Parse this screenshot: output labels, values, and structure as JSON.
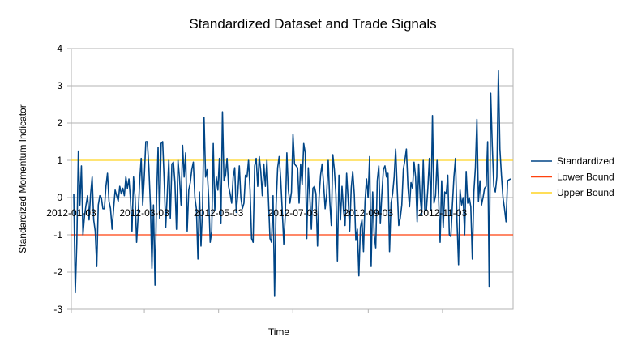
{
  "chart_data": {
    "type": "line",
    "title": "Standardized Dataset and Trade Signals",
    "xlabel": "Time",
    "ylabel": "Standardized Momentum Indicator",
    "ylim": [
      -3,
      4
    ],
    "yticks": [
      -3,
      -2,
      -1,
      0,
      1,
      2,
      3,
      4
    ],
    "grid": "horizontal",
    "legend": "right",
    "x_start": "2012-01-03",
    "x_end": "2012-12-31",
    "xticks": [
      "2012-01-03",
      "2012-03-03",
      "2012-05-03",
      "2012-07-03",
      "2012-09-03",
      "2012-11-03"
    ],
    "series": [
      {
        "name": "Standardized",
        "color": "#004586",
        "values": [
          0.1,
          -2.55,
          -1.2,
          1.25,
          -0.2,
          0.85,
          -1.0,
          -0.5,
          -0.2,
          0.05,
          -0.6,
          0.1,
          0.55,
          -0.6,
          -0.9,
          -1.85,
          -0.2,
          0.05,
          0.0,
          -0.3,
          -0.3,
          0.3,
          0.65,
          -0.1,
          -0.3,
          -0.85,
          -0.3,
          0.2,
          0.05,
          -0.1,
          0.3,
          0.1,
          0.25,
          0.05,
          0.55,
          0.25,
          0.5,
          -0.05,
          -0.9,
          0.55,
          0.0,
          -1.2,
          -0.5,
          0.45,
          1.05,
          -0.2,
          0.55,
          1.5,
          1.5,
          0.8,
          -0.2,
          -1.9,
          -0.2,
          -2.35,
          -0.05,
          1.35,
          -0.55,
          1.45,
          1.5,
          0.45,
          -0.8,
          0.1,
          1.0,
          -0.55,
          0.9,
          0.95,
          0.4,
          -0.85,
          1.0,
          0.5,
          -0.2,
          1.4,
          0.55,
          1.2,
          -0.9,
          0.2,
          0.4,
          0.75,
          0.95,
          0.0,
          -0.3,
          -1.65,
          0.15,
          -1.3,
          -0.3,
          2.15,
          0.55,
          0.75,
          0.0,
          -1.2,
          -0.9,
          1.45,
          -0.35,
          0.55,
          0.2,
          1.05,
          -0.7,
          2.3,
          0.45,
          0.6,
          1.05,
          0.3,
          0.1,
          -0.15,
          0.55,
          0.8,
          -0.4,
          0.1,
          0.85,
          0.0,
          -0.3,
          -0.15,
          0.6,
          0.55,
          1.0,
          0.2,
          -1.1,
          -1.2,
          0.85,
          1.05,
          0.3,
          1.1,
          0.7,
          0.05,
          0.9,
          0.3,
          1.0,
          -0.05,
          -1.1,
          -1.2,
          0.05,
          -2.65,
          -0.2,
          0.8,
          1.1,
          0.5,
          -0.35,
          -1.25,
          -0.45,
          1.2,
          0.2,
          -0.15,
          0.15,
          1.7,
          0.9,
          0.85,
          0.8,
          -0.15,
          0.9,
          0.35,
          1.45,
          1.2,
          -1.1,
          0.8,
          0.0,
          -0.85,
          0.25,
          0.3,
          0.1,
          -1.3,
          0.0,
          0.6,
          0.9,
          0.35,
          -0.3,
          0.1,
          1.0,
          -0.1,
          -0.75,
          1.15,
          0.75,
          0.1,
          -1.7,
          0.6,
          -0.6,
          0.3,
          -0.35,
          -0.75,
          0.65,
          -0.05,
          -0.9,
          0.25,
          0.7,
          0.1,
          -1.15,
          -0.85,
          -2.1,
          -0.8,
          -0.6,
          -1.45,
          -0.1,
          0.5,
          0.0,
          1.1,
          -1.85,
          0.15,
          -1.0,
          -1.35,
          0.45,
          0.85,
          -0.7,
          0.1,
          0.75,
          0.85,
          0.55,
          0.65,
          -1.45,
          -0.15,
          0.1,
          0.55,
          1.3,
          0.25,
          -0.75,
          -0.55,
          -0.2,
          0.75,
          1.0,
          1.3,
          0.3,
          -0.25,
          0.4,
          0.25,
          0.95,
          0.55,
          -0.65,
          0.9,
          0.0,
          -0.45,
          1.0,
          -0.35,
          -0.35,
          0.25,
          1.05,
          -0.35,
          2.2,
          -0.15,
          0.05,
          1.0,
          0.0,
          -1.2,
          0.45,
          -0.8,
          0.15,
          0.1,
          0.6,
          -1.0,
          -1.05,
          -0.2,
          0.55,
          1.05,
          -0.65,
          -1.8,
          0.2,
          -0.2,
          0.0,
          -1.0,
          0.7,
          -0.15,
          0.0,
          -0.25,
          -1.65,
          0.15,
          0.8,
          2.1,
          -0.1,
          0.45,
          -0.2,
          0.0,
          0.25,
          0.3,
          1.5,
          -2.4,
          2.8,
          1.4,
          0.3,
          0.15,
          0.55,
          3.4,
          1.3,
          0.6,
          0.0,
          -0.3,
          -0.65,
          0.45,
          0.48,
          0.5
        ]
      },
      {
        "name": "Lower Bound",
        "color": "#ff420e",
        "constant": -1
      },
      {
        "name": "Upper Bound",
        "color": "#ffd320",
        "constant": 1
      }
    ]
  }
}
